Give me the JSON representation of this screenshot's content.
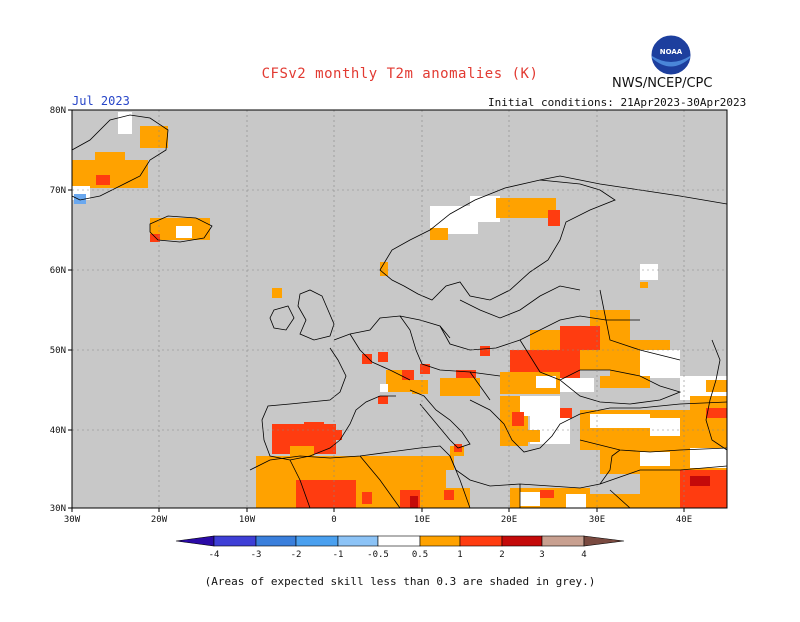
{
  "header": {
    "title": "CFSv2 monthly T2m anomalies (K)",
    "agency": "NWS/NCEP/CPC",
    "month": "Jul 2023",
    "initial_conditions": "Initial conditions: 21Apr2023-30Apr2023",
    "logo_text": "NOAA"
  },
  "axes": {
    "lat_labels": [
      "80N",
      "70N",
      "60N",
      "50N",
      "40N",
      "30N"
    ],
    "lon_labels": [
      "30W",
      "20W",
      "10W",
      "0",
      "10E",
      "20E",
      "30E",
      "40E"
    ]
  },
  "colorbar": {
    "labels": [
      "-4",
      "-3",
      "-2",
      "-1",
      "-0.5",
      "0.5",
      "1",
      "2",
      "3",
      "4"
    ],
    "colors": [
      "#2a0aa6",
      "#3e3fd6",
      "#3a7fdc",
      "#4aa0ef",
      "#8cc3f6",
      "#ffffff",
      "#ffa200",
      "#ff3c10",
      "#c40a0a",
      "#8a0202",
      "#c8a090",
      "#7a4a40"
    ],
    "missing_color": "#c8c8c8"
  },
  "footnote": "(Areas of expected skill less than 0.3 are shaded in grey.)"
}
